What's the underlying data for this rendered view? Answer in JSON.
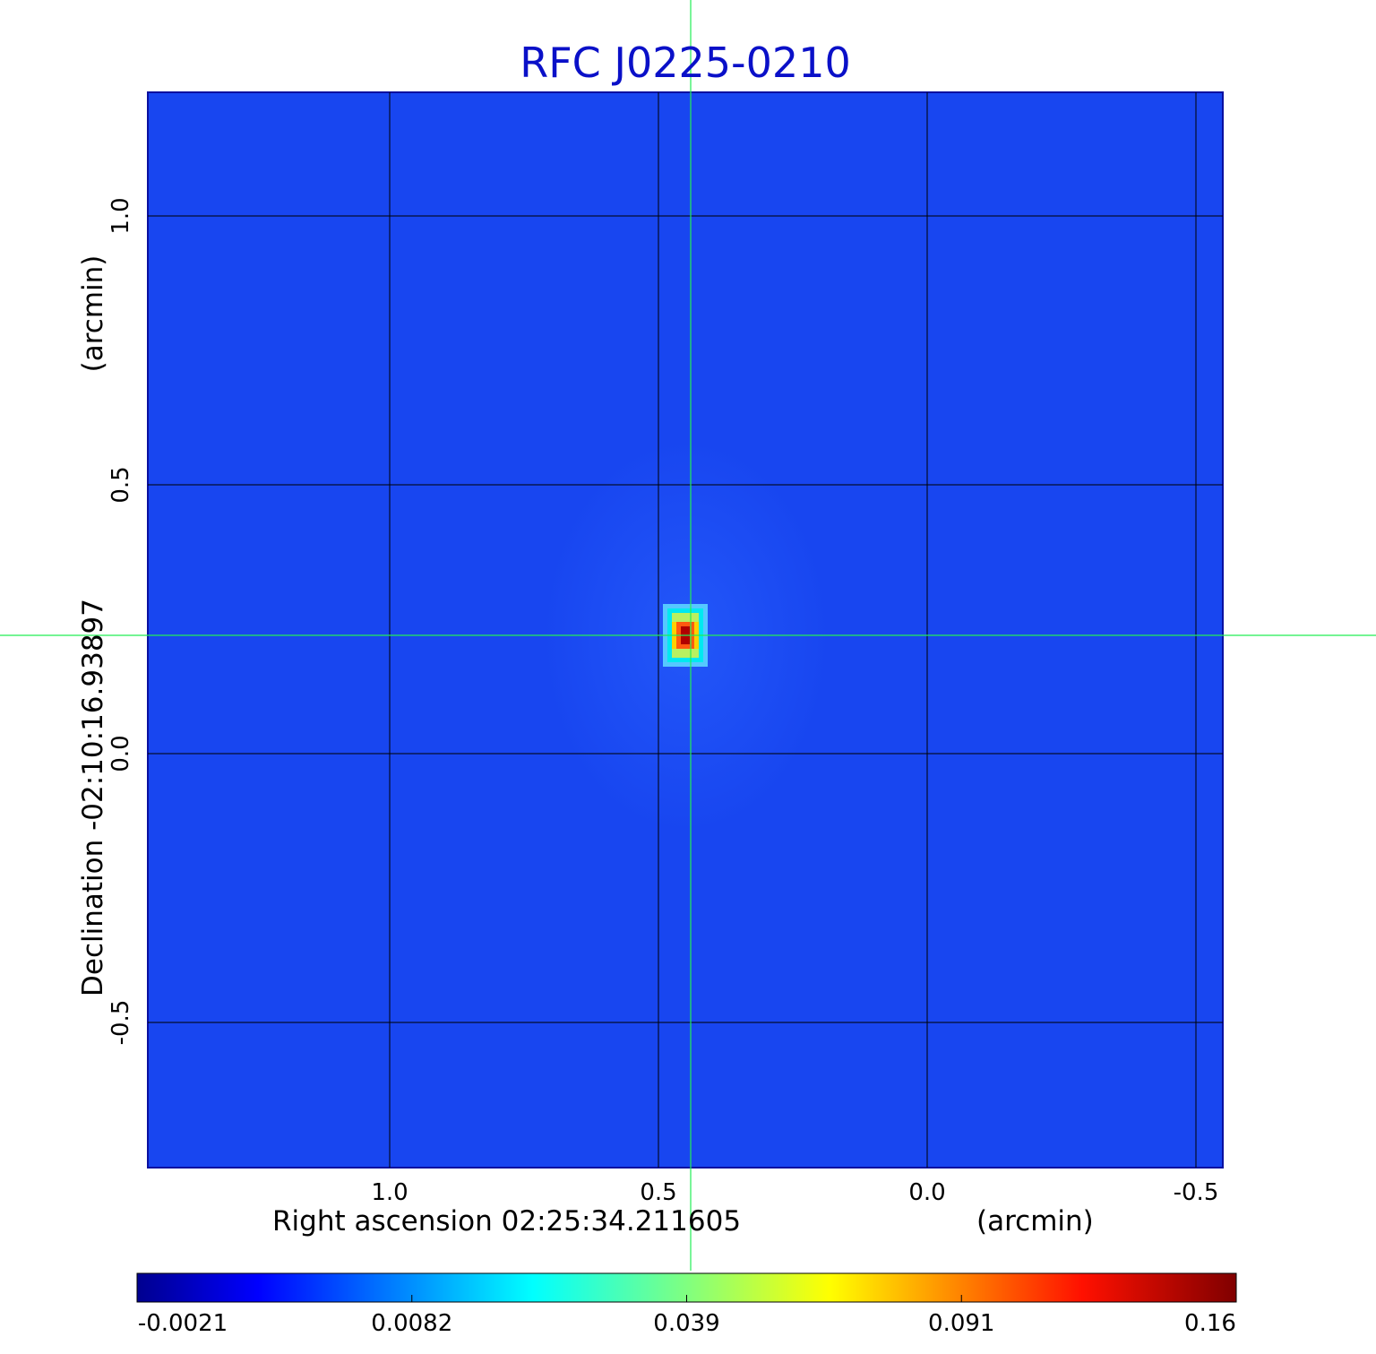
{
  "chart_data": {
    "type": "heatmap",
    "title": "RFC J0225-0210",
    "xlabel": "Right ascension  02:25:34.211605",
    "x_unit": "(arcmin)",
    "ylabel": "Declination  -02:10:16.93897",
    "y_unit": "(arcmin)",
    "xlim": [
      1.45,
      -0.55
    ],
    "ylim": [
      -0.77,
      1.23
    ],
    "x_ticks": [
      "1.0",
      "0.5",
      "0.0",
      "-0.5"
    ],
    "x_tick_values": [
      1.0,
      0.5,
      0.0,
      -0.5
    ],
    "y_ticks": [
      "1.0",
      "0.5",
      "0.0",
      "-0.5"
    ],
    "y_tick_values": [
      1.0,
      0.5,
      0.0,
      -0.5
    ],
    "grid": true,
    "crosshair": {
      "ra_offset": 0.44,
      "dec_offset": 0.22
    },
    "source_peak": {
      "ra_offset": 0.45,
      "dec_offset": 0.22,
      "value": 0.16
    },
    "colorscale": "jet",
    "colorbar": {
      "range": [
        -0.0021,
        0.16
      ],
      "ticks": [
        "-0.0021",
        "0.0082",
        "0.039",
        "0.091",
        "0.16"
      ]
    }
  },
  "colors": {
    "title": "#0a10c8",
    "background_field": "#1846f0",
    "crosshair": "#22ee55",
    "grid": "#000000"
  }
}
